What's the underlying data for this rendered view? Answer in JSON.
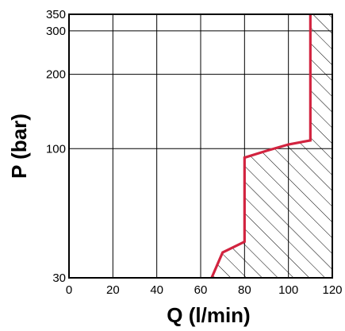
{
  "chart_data": {
    "type": "line",
    "title": "",
    "xlabel": "Q (l/min)",
    "ylabel": "P (bar)",
    "xlim": [
      0,
      120
    ],
    "ylim": [
      30,
      350
    ],
    "yscale": "log",
    "grid": true,
    "x_ticks": [
      0,
      20,
      40,
      60,
      80,
      100,
      120
    ],
    "x_tick_labels": [
      "0",
      "20",
      "40",
      "60",
      "80",
      "100",
      "120"
    ],
    "y_ticks": [
      30,
      100,
      200,
      300,
      350
    ],
    "y_tick_labels": [
      "30",
      "100",
      "200",
      "300",
      "350"
    ],
    "series": [
      {
        "color": "#d2233f",
        "x": [
          65,
          70,
          80,
          80,
          90,
          100,
          110,
          110
        ],
        "y": [
          30,
          38,
          42,
          92,
          98,
          104,
          108,
          350
        ]
      }
    ],
    "shaded_region": {
      "description": "hatched",
      "boundary_series_index": 0,
      "side": "right"
    },
    "colors": {
      "line": "#d2233f",
      "axes": "#000000",
      "grid": "#000000",
      "hatch": "#000000"
    }
  }
}
